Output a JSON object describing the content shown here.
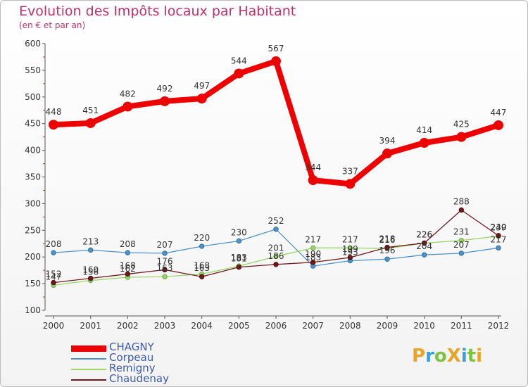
{
  "title": "Evolution des Impôts locaux par Habitant",
  "subtitle": "(en € et par an)",
  "logo": {
    "text": "ProXiti",
    "letters": [
      "P",
      "r",
      "o",
      "X",
      "i",
      "t",
      "i"
    ],
    "colors": [
      "#e8a425",
      "#3c9de0",
      "#7ec243",
      "#e8a425",
      "#3c9de0",
      "#7ec243",
      "#e8a425"
    ]
  },
  "chart_data": {
    "type": "line",
    "title": "Evolution des Impôts locaux par Habitant",
    "ylabel": "(en € et par an)",
    "xlabel": "",
    "ylim": [
      100,
      600
    ],
    "yticks": [
      100,
      150,
      200,
      250,
      300,
      350,
      400,
      450,
      500,
      550,
      600
    ],
    "x": [
      "2000",
      "2001",
      "2002",
      "2003",
      "2004",
      "2005",
      "2006",
      "2007",
      "2008",
      "2009",
      "2010",
      "2011",
      "2012"
    ],
    "grid": false,
    "legend_position": "bottom-left",
    "series": [
      {
        "name": "CHAGNY",
        "color": "#ee0000",
        "values": [
          448,
          451,
          482,
          492,
          497,
          544,
          567,
          344,
          337,
          394,
          414,
          425,
          447
        ]
      },
      {
        "name": "Corpeau",
        "color": "#4f93c9",
        "values": [
          208,
          213,
          208,
          207,
          220,
          230,
          252,
          183,
          193,
          196,
          204,
          207,
          217
        ]
      },
      {
        "name": "Remigny",
        "color": "#9ad66d",
        "values": [
          147,
          156,
          162,
          163,
          168,
          183,
          201,
          217,
          217,
          216,
          226,
          231,
          239
        ]
      },
      {
        "name": "Chaudenay",
        "color": "#6e1a1a",
        "values": [
          152,
          160,
          168,
          176,
          163,
          181,
          186,
          190,
          199,
          218,
          226,
          288,
          240
        ]
      }
    ],
    "data_labels": [
      {
        "series": "CHAGNY",
        "labels": [
          "448",
          "451",
          "482",
          "492",
          "497",
          "544",
          "567",
          "344",
          "337",
          "394",
          "414",
          "425",
          "447"
        ]
      },
      {
        "series": "Corpeau",
        "labels": [
          "208",
          "213",
          "208",
          "207",
          "220",
          "230",
          "252",
          "183",
          "193",
          "196",
          "204",
          "207",
          "217"
        ]
      },
      {
        "series": "Remigny",
        "labels": [
          "147",
          "156",
          "162",
          "163",
          "168",
          "183",
          "201",
          "217",
          "217",
          "216",
          "226",
          "231",
          "239"
        ]
      },
      {
        "series": "Chaudenay",
        "labels": [
          "152",
          "160",
          "168",
          "176",
          "163",
          "181",
          "186",
          "190",
          "199",
          "218",
          "226",
          "288",
          "240"
        ]
      }
    ]
  }
}
